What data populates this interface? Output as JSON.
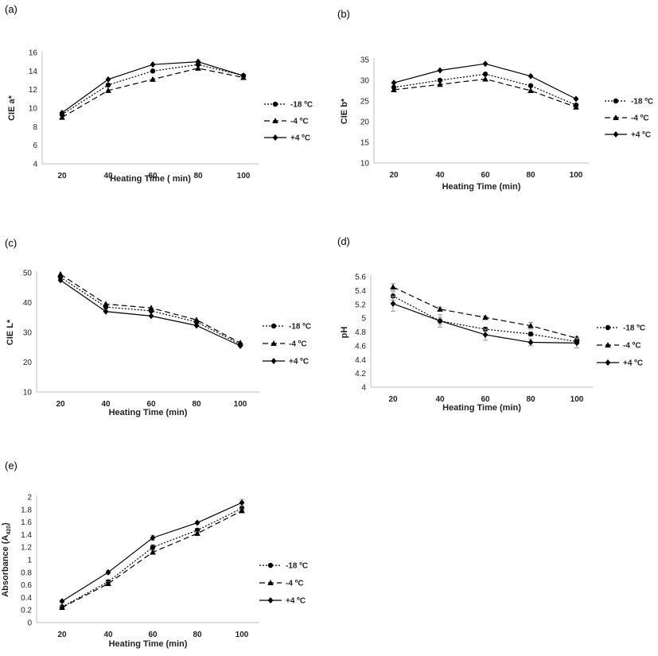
{
  "chart_data": [
    {
      "id": "a",
      "type": "line",
      "panel_label": "(a)",
      "xlabel": "Heating Time ( min)",
      "ylabel": "CIE a*",
      "x": [
        20,
        40,
        60,
        80,
        100
      ],
      "x_ticks": [
        "20",
        "40",
        "60",
        "80",
        "100"
      ],
      "ylim": [
        4,
        16
      ],
      "y_ticks": [
        "4",
        "6",
        "8",
        "10",
        "12",
        "14",
        "16"
      ],
      "grid": false,
      "legend_position": "right",
      "series": [
        {
          "name": "-18 ºC",
          "values": [
            9.3,
            12.5,
            14.0,
            14.7,
            13.5
          ],
          "marker": "circle",
          "dash": "dotted"
        },
        {
          "name": "-4 ºC",
          "values": [
            9.0,
            11.9,
            13.1,
            14.3,
            13.3
          ],
          "marker": "triangle",
          "dash": "dashed"
        },
        {
          "name": "+4 ºC",
          "values": [
            9.5,
            13.1,
            14.7,
            15.0,
            13.5
          ],
          "marker": "diamond",
          "dash": "solid"
        }
      ]
    },
    {
      "id": "b",
      "type": "line",
      "panel_label": "(b)",
      "xlabel": "Heating Time (min)",
      "ylabel": "CIE b*",
      "x": [
        20,
        40,
        60,
        80,
        100
      ],
      "x_ticks": [
        "20",
        "40",
        "60",
        "80",
        "100"
      ],
      "ylim": [
        10,
        35
      ],
      "y_ticks": [
        "10",
        "15",
        "20",
        "25",
        "30",
        "35"
      ],
      "grid": false,
      "legend_position": "right",
      "series": [
        {
          "name": "-18 ºC",
          "values": [
            28.3,
            30.0,
            31.5,
            28.7,
            24.0
          ],
          "marker": "circle",
          "dash": "dotted"
        },
        {
          "name": "-4 ºC",
          "values": [
            27.7,
            29.0,
            30.3,
            27.5,
            23.5
          ],
          "marker": "triangle",
          "dash": "dashed"
        },
        {
          "name": "+4 ºC",
          "values": [
            29.4,
            32.4,
            34.0,
            31.0,
            25.5
          ],
          "marker": "diamond",
          "dash": "solid"
        }
      ]
    },
    {
      "id": "c",
      "type": "line",
      "panel_label": "(c)",
      "xlabel": "Heating Time (min)",
      "ylabel": "CIE L*",
      "x": [
        20,
        40,
        60,
        80,
        100
      ],
      "x_ticks": [
        "20",
        "40",
        "60",
        "80",
        "100"
      ],
      "ylim": [
        10,
        50
      ],
      "y_ticks": [
        "10",
        "20",
        "30",
        "40",
        "50"
      ],
      "grid": false,
      "legend_position": "right",
      "series": [
        {
          "name": "-18 ºC",
          "values": [
            48.5,
            38.5,
            37.2,
            33.5,
            26.0
          ],
          "marker": "circle",
          "dash": "dotted"
        },
        {
          "name": "-4 ºC",
          "values": [
            49.5,
            39.5,
            38.2,
            34.2,
            26.5
          ],
          "marker": "triangle",
          "dash": "dashed"
        },
        {
          "name": "+4 ºC",
          "values": [
            47.5,
            37.0,
            35.5,
            32.3,
            25.5
          ],
          "marker": "diamond",
          "dash": "solid"
        }
      ]
    },
    {
      "id": "d",
      "type": "line",
      "panel_label": "(d)",
      "xlabel": "Heating Time (min)",
      "ylabel": "pH",
      "x": [
        20,
        40,
        60,
        80,
        100
      ],
      "x_ticks": [
        "20",
        "40",
        "60",
        "80",
        "100"
      ],
      "ylim": [
        4,
        5.6
      ],
      "y_ticks": [
        "4",
        "4.2",
        "4.4",
        "4.6",
        "4.8",
        "5",
        "5.2",
        "5.4",
        "5.6"
      ],
      "grid": false,
      "legend_position": "right",
      "series": [
        {
          "name": "-18 ºC",
          "values": [
            5.32,
            4.96,
            4.84,
            4.77,
            4.66
          ],
          "errors": [
            0.06,
            0.05,
            0.03,
            0.03,
            0.03
          ],
          "marker": "circle",
          "dash": "dotted"
        },
        {
          "name": "-4 ºC",
          "values": [
            5.45,
            5.13,
            5.01,
            4.89,
            4.71
          ],
          "errors": [
            0.05,
            0.03,
            0.02,
            0.05,
            0.02
          ],
          "marker": "triangle",
          "dash": "dashed"
        },
        {
          "name": "+4 ºC",
          "values": [
            5.21,
            4.96,
            4.76,
            4.65,
            4.64
          ],
          "errors": [
            0.11,
            0.09,
            0.08,
            0.05,
            0.07
          ],
          "marker": "diamond",
          "dash": "solid"
        }
      ]
    },
    {
      "id": "e",
      "type": "line",
      "panel_label": "(e)",
      "xlabel": "Heating Time (min)",
      "ylabel": "Absorbance (A",
      "ylabel_sub": "420",
      "ylabel_end": ")",
      "x": [
        20,
        40,
        60,
        80,
        100
      ],
      "x_ticks": [
        "20",
        "40",
        "60",
        "80",
        "100"
      ],
      "ylim": [
        0,
        2
      ],
      "y_ticks": [
        "0",
        "0.2",
        "0.4",
        "0.6",
        "0.8",
        "1",
        "1.2",
        "1.4",
        "1.6",
        "1.8",
        "2"
      ],
      "grid": false,
      "legend_position": "right",
      "series": [
        {
          "name": "-18 ºC",
          "values": [
            0.25,
            0.65,
            1.2,
            1.47,
            1.82
          ],
          "errors": [
            0.02,
            0.03,
            0.04,
            0.03,
            0.04
          ],
          "marker": "circle",
          "dash": "dotted"
        },
        {
          "name": "-4 ºC",
          "values": [
            0.24,
            0.62,
            1.12,
            1.42,
            1.78
          ],
          "errors": [
            0.02,
            0.03,
            0.03,
            0.03,
            0.03
          ],
          "marker": "triangle",
          "dash": "dashed"
        },
        {
          "name": "+4 ºC",
          "values": [
            0.34,
            0.8,
            1.35,
            1.59,
            1.91
          ],
          "errors": [
            0.02,
            0.03,
            0.04,
            0.02,
            0.05
          ],
          "marker": "diamond",
          "dash": "solid"
        }
      ]
    }
  ]
}
